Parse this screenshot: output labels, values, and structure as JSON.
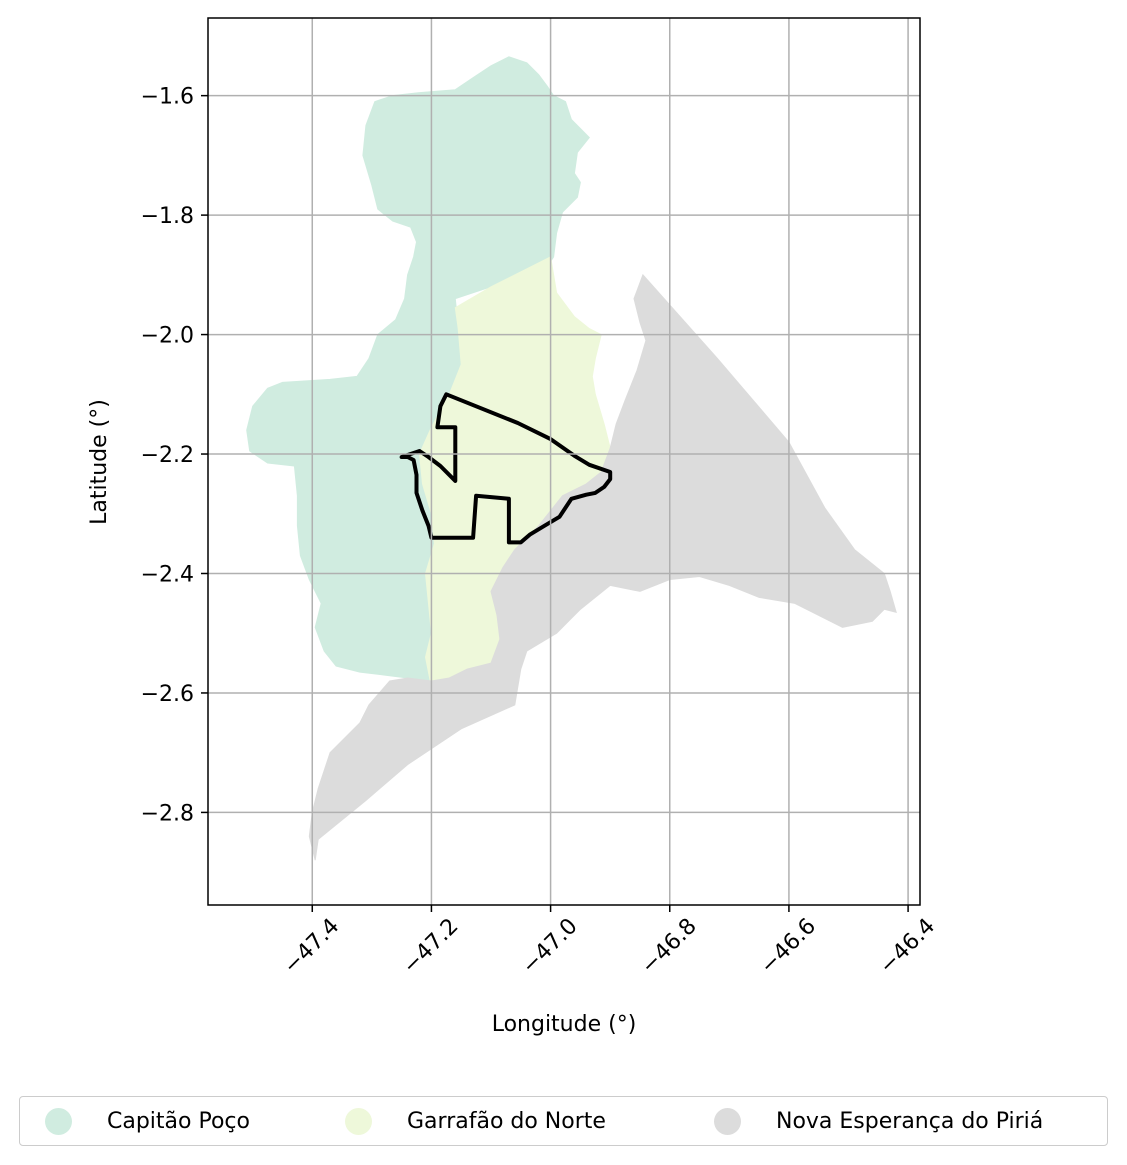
{
  "chart_data": {
    "type": "map",
    "title": "",
    "xlabel": "Longitude (°)",
    "ylabel": "Latitude (°)",
    "xlim": [
      -47.575,
      -46.38
    ],
    "ylim": [
      -2.955,
      -1.47
    ],
    "xticks": [
      -47.4,
      -47.2,
      -47.0,
      -46.8,
      -46.6,
      -46.4
    ],
    "xtick_labels": [
      "−47.4",
      "−47.2",
      "−47.0",
      "−46.8",
      "−46.6",
      "−46.4"
    ],
    "yticks": [
      -1.6,
      -1.8,
      -2.0,
      -2.2,
      -2.4,
      -2.6,
      -2.8
    ],
    "ytick_labels": [
      "−1.6",
      "−1.8",
      "−2.0",
      "−2.2",
      "−2.4",
      "−2.6",
      "−2.8"
    ],
    "grid": true,
    "legend_position": "bottom",
    "regions": [
      {
        "name": "Capitão Poço",
        "color": "#d0ece0",
        "coords": [
          [
            -47.222,
            -1.595
          ],
          [
            -47.16,
            -1.59
          ],
          [
            -47.13,
            -1.57
          ],
          [
            -47.1,
            -1.55
          ],
          [
            -47.07,
            -1.535
          ],
          [
            -47.04,
            -1.545
          ],
          [
            -47.02,
            -1.565
          ],
          [
            -47.005,
            -1.585
          ],
          [
            -46.995,
            -1.6
          ],
          [
            -46.975,
            -1.61
          ],
          [
            -46.965,
            -1.64
          ],
          [
            -46.935,
            -1.67
          ],
          [
            -46.955,
            -1.695
          ],
          [
            -46.96,
            -1.73
          ],
          [
            -46.95,
            -1.745
          ],
          [
            -46.955,
            -1.77
          ],
          [
            -46.98,
            -1.795
          ],
          [
            -46.99,
            -1.83
          ],
          [
            -46.995,
            -1.87
          ],
          [
            -47.005,
            -1.885
          ],
          [
            -47.05,
            -1.9
          ],
          [
            -47.1,
            -1.92
          ],
          [
            -47.16,
            -1.94
          ],
          [
            -47.155,
            -1.99
          ],
          [
            -47.15,
            -2.05
          ],
          [
            -47.17,
            -2.1
          ],
          [
            -47.2,
            -2.155
          ],
          [
            -47.22,
            -2.2
          ],
          [
            -47.215,
            -2.25
          ],
          [
            -47.2,
            -2.3
          ],
          [
            -47.195,
            -2.35
          ],
          [
            -47.21,
            -2.4
          ],
          [
            -47.205,
            -2.45
          ],
          [
            -47.2,
            -2.5
          ],
          [
            -47.21,
            -2.54
          ],
          [
            -47.2,
            -2.58
          ],
          [
            -47.24,
            -2.575
          ],
          [
            -47.28,
            -2.57
          ],
          [
            -47.32,
            -2.565
          ],
          [
            -47.36,
            -2.555
          ],
          [
            -47.38,
            -2.53
          ],
          [
            -47.395,
            -2.49
          ],
          [
            -47.385,
            -2.45
          ],
          [
            -47.405,
            -2.41
          ],
          [
            -47.42,
            -2.37
          ],
          [
            -47.425,
            -2.32
          ],
          [
            -47.425,
            -2.27
          ],
          [
            -47.43,
            -2.22
          ],
          [
            -47.475,
            -2.215
          ],
          [
            -47.505,
            -2.195
          ],
          [
            -47.51,
            -2.16
          ],
          [
            -47.5,
            -2.12
          ],
          [
            -47.475,
            -2.09
          ],
          [
            -47.45,
            -2.08
          ],
          [
            -47.37,
            -2.075
          ],
          [
            -47.325,
            -2.07
          ],
          [
            -47.305,
            -2.04
          ],
          [
            -47.29,
            -2.0
          ],
          [
            -47.26,
            -1.975
          ],
          [
            -47.245,
            -1.94
          ],
          [
            -47.24,
            -1.9
          ],
          [
            -47.23,
            -1.87
          ],
          [
            -47.225,
            -1.845
          ],
          [
            -47.235,
            -1.82
          ],
          [
            -47.265,
            -1.81
          ],
          [
            -47.29,
            -1.79
          ],
          [
            -47.3,
            -1.75
          ],
          [
            -47.315,
            -1.7
          ],
          [
            -47.31,
            -1.65
          ],
          [
            -47.295,
            -1.61
          ],
          [
            -47.265,
            -1.6
          ]
        ]
      },
      {
        "name": "Garrafão do Norte",
        "color": "#eef8da",
        "coords": [
          [
            -47.16,
            -1.955
          ],
          [
            -47.1,
            -1.92
          ],
          [
            -47.0,
            -1.87
          ],
          [
            -46.99,
            -1.93
          ],
          [
            -46.96,
            -1.97
          ],
          [
            -46.935,
            -1.99
          ],
          [
            -46.915,
            -2.0
          ],
          [
            -46.925,
            -2.04
          ],
          [
            -46.93,
            -2.07
          ],
          [
            -46.925,
            -2.1
          ],
          [
            -46.91,
            -2.15
          ],
          [
            -46.9,
            -2.19
          ],
          [
            -46.915,
            -2.23
          ],
          [
            -46.94,
            -2.25
          ],
          [
            -46.98,
            -2.27
          ],
          [
            -47.02,
            -2.32
          ],
          [
            -47.06,
            -2.36
          ],
          [
            -47.08,
            -2.39
          ],
          [
            -47.1,
            -2.43
          ],
          [
            -47.09,
            -2.47
          ],
          [
            -47.085,
            -2.51
          ],
          [
            -47.1,
            -2.55
          ],
          [
            -47.14,
            -2.56
          ],
          [
            -47.17,
            -2.575
          ],
          [
            -47.2,
            -2.59
          ],
          [
            -47.21,
            -2.54
          ],
          [
            -47.2,
            -2.5
          ],
          [
            -47.205,
            -2.45
          ],
          [
            -47.21,
            -2.4
          ],
          [
            -47.195,
            -2.35
          ],
          [
            -47.2,
            -2.3
          ],
          [
            -47.215,
            -2.25
          ],
          [
            -47.22,
            -2.2
          ],
          [
            -47.2,
            -2.155
          ],
          [
            -47.17,
            -2.1
          ],
          [
            -47.15,
            -2.05
          ],
          [
            -47.155,
            -1.99
          ]
        ]
      },
      {
        "name": "Nova Esperança do Piriá",
        "color": "#dcdcdc",
        "coords": [
          [
            -46.845,
            -1.9
          ],
          [
            -46.72,
            -2.04
          ],
          [
            -46.6,
            -2.18
          ],
          [
            -46.54,
            -2.29
          ],
          [
            -46.49,
            -2.36
          ],
          [
            -46.44,
            -2.4
          ],
          [
            -46.43,
            -2.43
          ],
          [
            -46.42,
            -2.465
          ],
          [
            -46.44,
            -2.46
          ],
          [
            -46.46,
            -2.48
          ],
          [
            -46.51,
            -2.49
          ],
          [
            -46.59,
            -2.45
          ],
          [
            -46.65,
            -2.44
          ],
          [
            -46.7,
            -2.42
          ],
          [
            -46.75,
            -2.405
          ],
          [
            -46.8,
            -2.41
          ],
          [
            -46.85,
            -2.43
          ],
          [
            -46.9,
            -2.42
          ],
          [
            -46.95,
            -2.46
          ],
          [
            -46.99,
            -2.5
          ],
          [
            -47.04,
            -2.53
          ],
          [
            -47.05,
            -2.56
          ],
          [
            -47.06,
            -2.62
          ],
          [
            -47.15,
            -2.66
          ],
          [
            -47.24,
            -2.72
          ],
          [
            -47.31,
            -2.78
          ],
          [
            -47.39,
            -2.845
          ],
          [
            -47.395,
            -2.88
          ],
          [
            -47.405,
            -2.84
          ],
          [
            -47.4,
            -2.8
          ],
          [
            -47.39,
            -2.76
          ],
          [
            -47.37,
            -2.7
          ],
          [
            -47.32,
            -2.65
          ],
          [
            -47.305,
            -2.62
          ],
          [
            -47.27,
            -2.58
          ],
          [
            -47.24,
            -2.575
          ],
          [
            -47.2,
            -2.58
          ],
          [
            -47.17,
            -2.575
          ],
          [
            -47.14,
            -2.56
          ],
          [
            -47.1,
            -2.55
          ],
          [
            -47.085,
            -2.51
          ],
          [
            -47.09,
            -2.47
          ],
          [
            -47.1,
            -2.43
          ],
          [
            -47.08,
            -2.39
          ],
          [
            -47.06,
            -2.36
          ],
          [
            -47.02,
            -2.32
          ],
          [
            -46.98,
            -2.27
          ],
          [
            -46.94,
            -2.25
          ],
          [
            -46.915,
            -2.23
          ],
          [
            -46.9,
            -2.19
          ],
          [
            -46.89,
            -2.15
          ],
          [
            -46.875,
            -2.11
          ],
          [
            -46.855,
            -2.06
          ],
          [
            -46.84,
            -2.01
          ],
          [
            -46.85,
            -1.98
          ],
          [
            -46.86,
            -1.94
          ]
        ]
      }
    ],
    "outline": {
      "name": "area boundary",
      "color": "#000000",
      "coords": [
        [
          -47.175,
          -2.1
        ],
        [
          -47.055,
          -2.148
        ],
        [
          -47.0,
          -2.175
        ],
        [
          -46.96,
          -2.203
        ],
        [
          -46.935,
          -2.218
        ],
        [
          -46.9,
          -2.23
        ],
        [
          -46.9,
          -2.242
        ],
        [
          -46.91,
          -2.255
        ],
        [
          -46.925,
          -2.265
        ],
        [
          -46.94,
          -2.268
        ],
        [
          -46.965,
          -2.275
        ],
        [
          -46.985,
          -2.305
        ],
        [
          -47.01,
          -2.32
        ],
        [
          -47.035,
          -2.335
        ],
        [
          -47.05,
          -2.348
        ],
        [
          -47.07,
          -2.348
        ],
        [
          -47.07,
          -2.275
        ],
        [
          -47.125,
          -2.27
        ],
        [
          -47.13,
          -2.34
        ],
        [
          -47.17,
          -2.34
        ],
        [
          -47.2,
          -2.34
        ],
        [
          -47.205,
          -2.32
        ],
        [
          -47.215,
          -2.295
        ],
        [
          -47.225,
          -2.265
        ],
        [
          -47.225,
          -2.235
        ],
        [
          -47.23,
          -2.21
        ],
        [
          -47.24,
          -2.205
        ],
        [
          -47.25,
          -2.205
        ],
        [
          -47.22,
          -2.195
        ],
        [
          -47.205,
          -2.205
        ],
        [
          -47.185,
          -2.22
        ],
        [
          -47.16,
          -2.245
        ],
        [
          -47.16,
          -2.155
        ],
        [
          -47.19,
          -2.155
        ],
        [
          -47.185,
          -2.12
        ]
      ]
    }
  },
  "legend": {
    "items": [
      {
        "label": "Capitão Poço",
        "color": "#d0ece0"
      },
      {
        "label": "Garrafão do Norte",
        "color": "#eef8da"
      },
      {
        "label": "Nova Esperança do Piriá",
        "color": "#dcdcdc"
      }
    ]
  }
}
